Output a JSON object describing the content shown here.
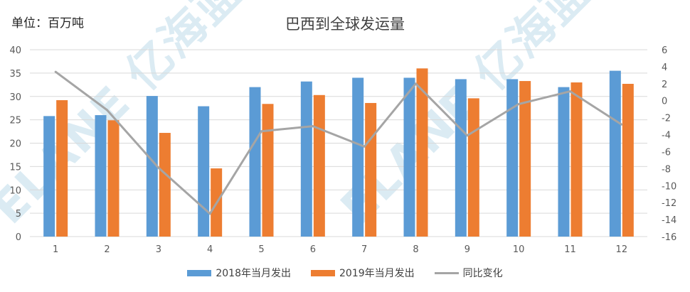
{
  "unit_label": "单位：百万吨",
  "watermark": [
    "ELANE 亿海蓝",
    "ELANE 亿海蓝"
  ],
  "chart_data": {
    "type": "bar",
    "title": "巴西到全球发运量",
    "xlabel": "",
    "ylabel": "",
    "categories": [
      "1",
      "2",
      "3",
      "4",
      "5",
      "6",
      "7",
      "8",
      "9",
      "10",
      "11",
      "12"
    ],
    "ylim": [
      0,
      40
    ],
    "y_ticks": [
      "0",
      "5",
      "10",
      "15",
      "20",
      "25",
      "30",
      "35",
      "40"
    ],
    "y2lim": [
      -16,
      6
    ],
    "y2_ticks": [
      "6",
      "4",
      "2",
      "0",
      "-2",
      "-4",
      "-6",
      "-8",
      "-10",
      "-12",
      "-14",
      "-16"
    ],
    "grid": true,
    "legend_position": "bottom",
    "series": [
      {
        "name": "2018年当月发出",
        "kind": "bar",
        "axis": "left",
        "color": "#5b9bd5",
        "values": [
          25.8,
          26.0,
          30.1,
          27.9,
          32.0,
          33.2,
          34.0,
          34.0,
          33.7,
          33.7,
          32.0,
          35.5
        ]
      },
      {
        "name": "2019年当月发出",
        "kind": "bar",
        "axis": "left",
        "color": "#ed7d31",
        "values": [
          29.2,
          24.9,
          22.2,
          14.6,
          28.4,
          30.3,
          28.6,
          36.0,
          29.6,
          33.3,
          33.0,
          32.7
        ]
      },
      {
        "name": "同比变化",
        "kind": "line",
        "axis": "right",
        "color": "#a5a5a5",
        "values": [
          3.4,
          -1.1,
          -7.9,
          -13.3,
          -3.6,
          -3.0,
          -5.4,
          2.0,
          -4.1,
          -0.4,
          1.1,
          -2.8
        ]
      }
    ]
  }
}
